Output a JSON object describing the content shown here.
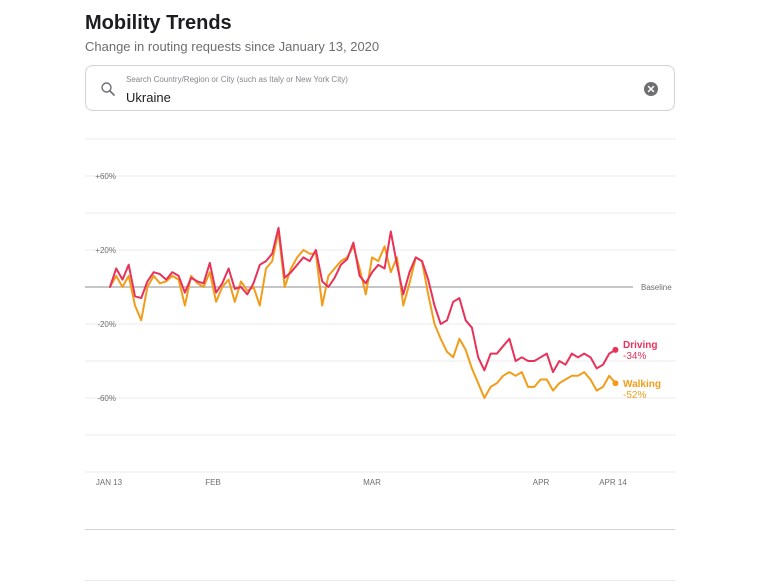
{
  "header": {
    "title": "Mobility Trends",
    "subtitle": "Change in routing requests since January 13, 2020"
  },
  "search": {
    "placeholder": "Search Country/Region or City (such as Italy or New York City)",
    "value": "Ukraine"
  },
  "colors": {
    "driving": "#e8325a",
    "walking": "#f29d1a",
    "grid": "#ebebeb",
    "baseline": "#8e8e93",
    "text": "#6e6e73"
  },
  "chart_data": {
    "type": "line",
    "title": "Mobility Trends",
    "xlabel": "",
    "ylabel": "Change in routing requests",
    "x_start": "JAN 13",
    "ylim": [
      -100,
      80
    ],
    "y_ticks": [
      {
        "value": 60,
        "label": "+60%"
      },
      {
        "value": 20,
        "label": "+20%"
      },
      {
        "value": -20,
        "label": "-20%"
      },
      {
        "value": -60,
        "label": "-60%"
      }
    ],
    "x_ticks": [
      {
        "day": 0,
        "label": "JAN 13"
      },
      {
        "day": 19,
        "label": "FEB"
      },
      {
        "day": 48,
        "label": "MAR"
      },
      {
        "day": 79,
        "label": "APR"
      },
      {
        "day": 92,
        "label": "APR 14"
      }
    ],
    "baseline": {
      "value": 0,
      "label": "Baseline"
    },
    "series": [
      {
        "name": "Driving",
        "end_label": "-34%",
        "values": [
          0,
          10,
          4,
          12,
          -5,
          -6,
          3,
          8,
          7,
          4,
          8,
          6,
          -3,
          5,
          3,
          2,
          13,
          -3,
          2,
          10,
          -1,
          0,
          -4,
          2,
          12,
          14,
          18,
          32,
          5,
          8,
          12,
          16,
          14,
          20,
          3,
          0,
          5,
          12,
          15,
          24,
          6,
          2,
          8,
          12,
          10,
          30,
          12,
          -4,
          8,
          16,
          14,
          4,
          -10,
          -20,
          -18,
          -8,
          -6,
          -18,
          -22,
          -38,
          -45,
          -36,
          -36,
          -32,
          -28,
          -40,
          -38,
          -40,
          -40,
          -38,
          -36,
          -46,
          -40,
          -42,
          -36,
          -38,
          -36,
          -38,
          -44,
          -42,
          -36,
          -34
        ]
      },
      {
        "name": "Walking",
        "end_label": "-52%",
        "values": [
          0,
          6,
          0,
          6,
          -10,
          -18,
          0,
          6,
          2,
          3,
          6,
          4,
          -10,
          6,
          2,
          0,
          8,
          -8,
          0,
          4,
          -8,
          3,
          -2,
          0,
          -10,
          10,
          14,
          30,
          0,
          10,
          16,
          20,
          18,
          18,
          -10,
          6,
          10,
          14,
          16,
          22,
          10,
          -4,
          16,
          14,
          22,
          8,
          16,
          -10,
          2,
          16,
          14,
          -4,
          -20,
          -28,
          -35,
          -38,
          -28,
          -34,
          -44,
          -52,
          -60,
          -54,
          -52,
          -48,
          -46,
          -48,
          -46,
          -54,
          -54,
          -50,
          -50,
          -56,
          -52,
          -50,
          -48,
          -48,
          -46,
          -50,
          -56,
          -54,
          -48,
          -52
        ]
      }
    ]
  }
}
